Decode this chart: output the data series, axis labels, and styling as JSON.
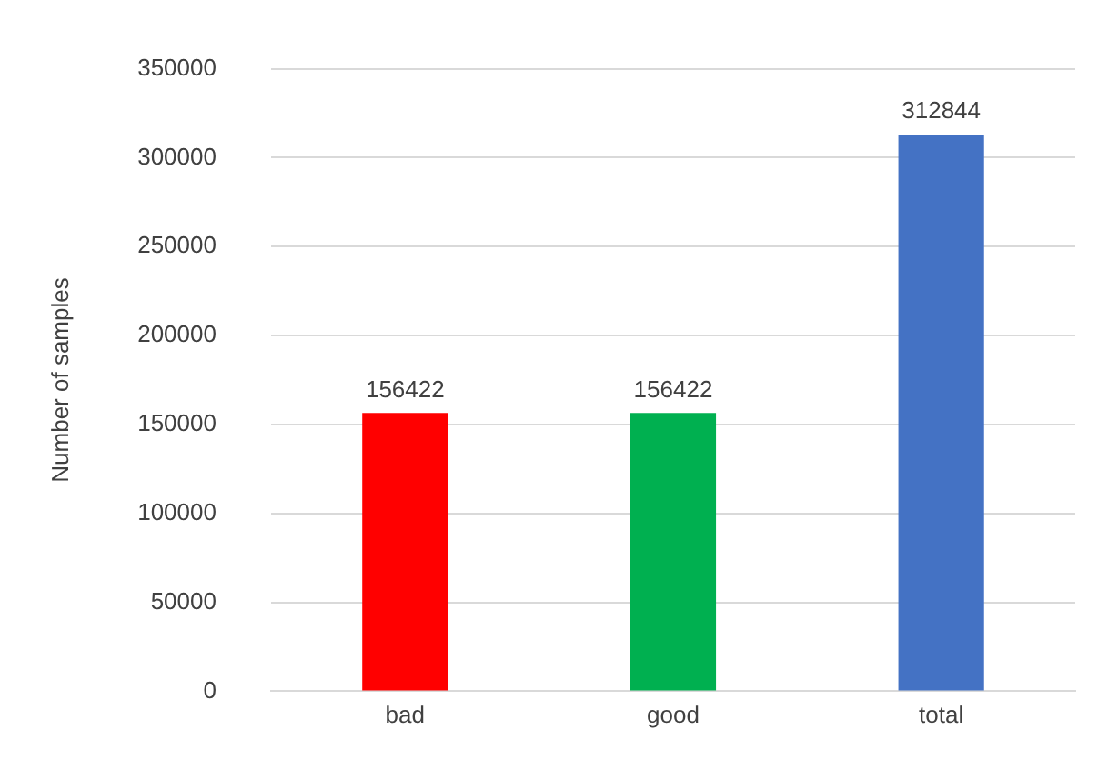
{
  "chart_data": {
    "type": "bar",
    "ylabel": "Number of samples",
    "categories": [
      "bad",
      "good",
      "total"
    ],
    "values": [
      156422,
      156422,
      312844
    ],
    "colors": [
      "#ff0000",
      "#00b050",
      "#4472c4"
    ],
    "ylim": [
      0,
      350000
    ],
    "yticks": [
      0,
      50000,
      100000,
      150000,
      200000,
      250000,
      300000,
      350000
    ],
    "grid": "y",
    "data_labels": true
  }
}
